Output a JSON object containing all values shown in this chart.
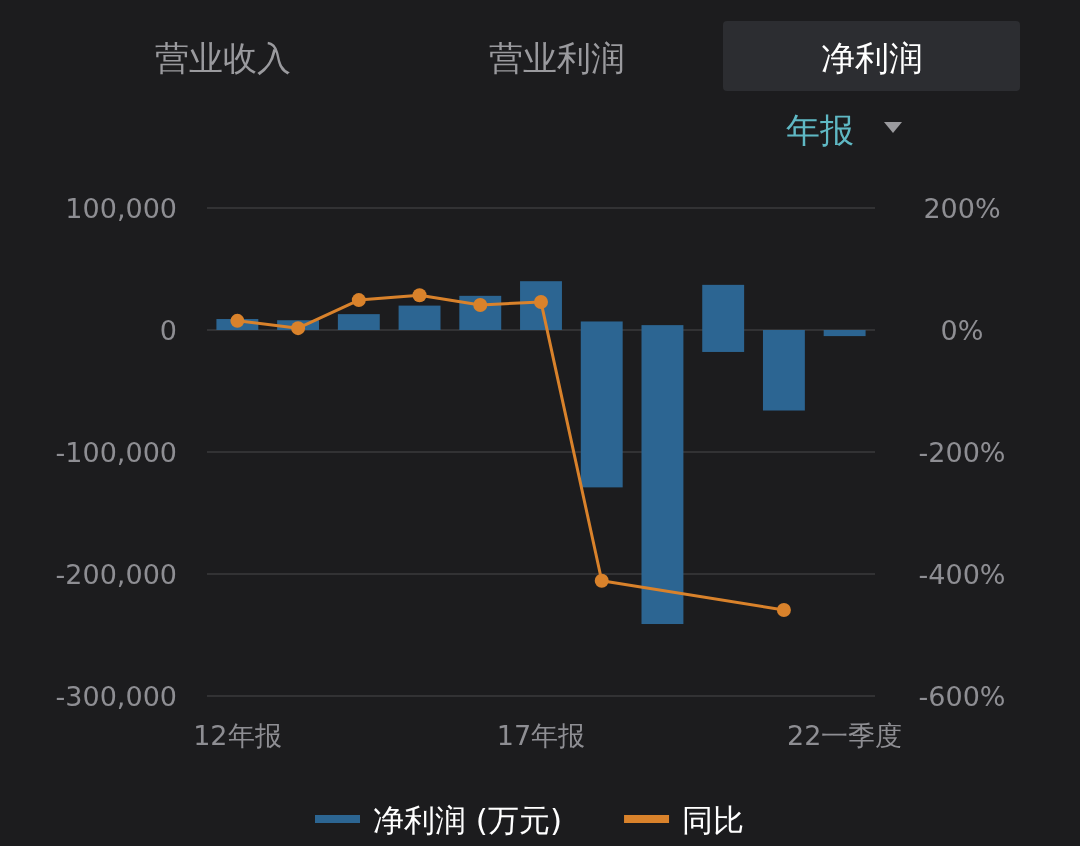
{
  "chart_data": {
    "type": "bar",
    "annotations": [
      "营业收入",
      "营业利润",
      "净利润",
      "年报"
    ],
    "categories": [
      "12年报",
      null,
      null,
      null,
      null,
      "17年报",
      null,
      null,
      null,
      null,
      "22一季度"
    ],
    "series": [
      {
        "name": "净利润 (万元)",
        "color": "#2c6592",
        "base": [
          0,
          0,
          0,
          0,
          0,
          0,
          -129000,
          -241000,
          -18000,
          -66000,
          -5000
        ],
        "values": [
          9000,
          8000,
          13000,
          20000,
          28000,
          40000,
          136000,
          245000,
          55000,
          66000,
          5000
        ]
      },
      {
        "name": "同比",
        "type": "line",
        "axis": "y2",
        "color": "#d9822b",
        "marker": "circle",
        "values": [
          15,
          3,
          49,
          57,
          41,
          46,
          -411,
          null,
          null,
          -459,
          null
        ]
      }
    ],
    "ylim": [
      -300000,
      100000
    ],
    "yticks": [
      {
        "value": -300000,
        "label": "-300,000"
      },
      {
        "value": -200000,
        "label": "-200,000"
      },
      {
        "value": -100000,
        "label": "-100,000"
      },
      0,
      {
        "value": 100000,
        "label": "100,000"
      }
    ],
    "y2lim": [
      -600,
      200
    ],
    "y2ticks": [
      {
        "value": -600,
        "label": "-600%"
      },
      {
        "value": -400,
        "label": "-400%"
      },
      {
        "value": -200,
        "label": "-200%"
      },
      {
        "value": 0,
        "label": "0%"
      },
      {
        "value": 200,
        "label": "200%"
      }
    ],
    "grid": "y",
    "legend": "bottom"
  }
}
